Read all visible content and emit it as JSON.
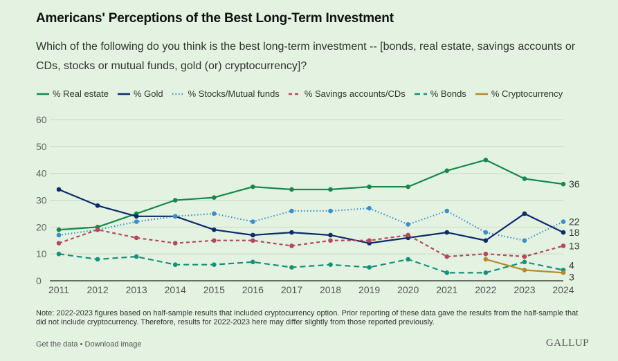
{
  "header": {
    "title": "Americans' Perceptions of the Best Long-Term Investment",
    "subtitle": "Which of the following do you think is the best long-term investment -- [bonds, real estate, savings accounts or CDs, stocks or mutual funds, gold (or) cryptocurrency]?"
  },
  "chart_data": {
    "type": "line",
    "title": "Americans' Perceptions of the Best Long-Term Investment",
    "xlabel": "",
    "ylabel": "",
    "x": [
      2011,
      2012,
      2013,
      2014,
      2015,
      2016,
      2017,
      2018,
      2019,
      2020,
      2021,
      2022,
      2023,
      2024
    ],
    "ylim": [
      0,
      60
    ],
    "yticks": [
      0,
      10,
      20,
      30,
      40,
      50,
      60
    ],
    "grid": true,
    "legend_position": "top",
    "series": [
      {
        "name": "% Real estate",
        "color": "#14894a",
        "style": "solid",
        "values": [
          19,
          20,
          25,
          30,
          31,
          35,
          34,
          34,
          35,
          35,
          41,
          45,
          38,
          36
        ],
        "end_label": "36"
      },
      {
        "name": "% Gold",
        "color": "#0d2b6b",
        "style": "solid",
        "values": [
          34,
          28,
          24,
          24,
          19,
          17,
          18,
          17,
          14,
          16,
          18,
          15,
          25,
          18
        ],
        "end_label": "18"
      },
      {
        "name": "% Stocks/Mutual funds",
        "color": "#3a8fc9",
        "style": "dotted",
        "values": [
          17,
          19,
          22,
          24,
          25,
          22,
          26,
          26,
          27,
          21,
          26,
          18,
          15,
          22
        ],
        "end_label": "22"
      },
      {
        "name": "% Savings accounts/CDs",
        "color": "#b5485c",
        "style": "dashed",
        "values": [
          14,
          19,
          16,
          14,
          15,
          15,
          13,
          15,
          15,
          17,
          9,
          10,
          9,
          13
        ],
        "end_label": "13"
      },
      {
        "name": "% Bonds",
        "color": "#12927a",
        "style": "longdash",
        "values": [
          10,
          8,
          9,
          6,
          6,
          7,
          5,
          6,
          5,
          8,
          3,
          3,
          7,
          4
        ],
        "end_label": "4"
      },
      {
        "name": "% Cryptocurrency",
        "color": "#b58a2a",
        "style": "solid",
        "values": [
          null,
          null,
          null,
          null,
          null,
          null,
          null,
          null,
          null,
          null,
          null,
          8,
          4,
          3
        ],
        "end_label": "3"
      }
    ]
  },
  "note": "Note: 2022-2023 figures based on half-sample results that included cryptocurrency option. Prior reporting of these data gave the results from the half-sample that did not include cryptocurrency. Therefore, results for 2022-2023 here may differ slightly from those reported previously.",
  "footer": {
    "get_data": "Get the data",
    "separator": " • ",
    "download": "Download image",
    "brand": "GALLUP"
  }
}
